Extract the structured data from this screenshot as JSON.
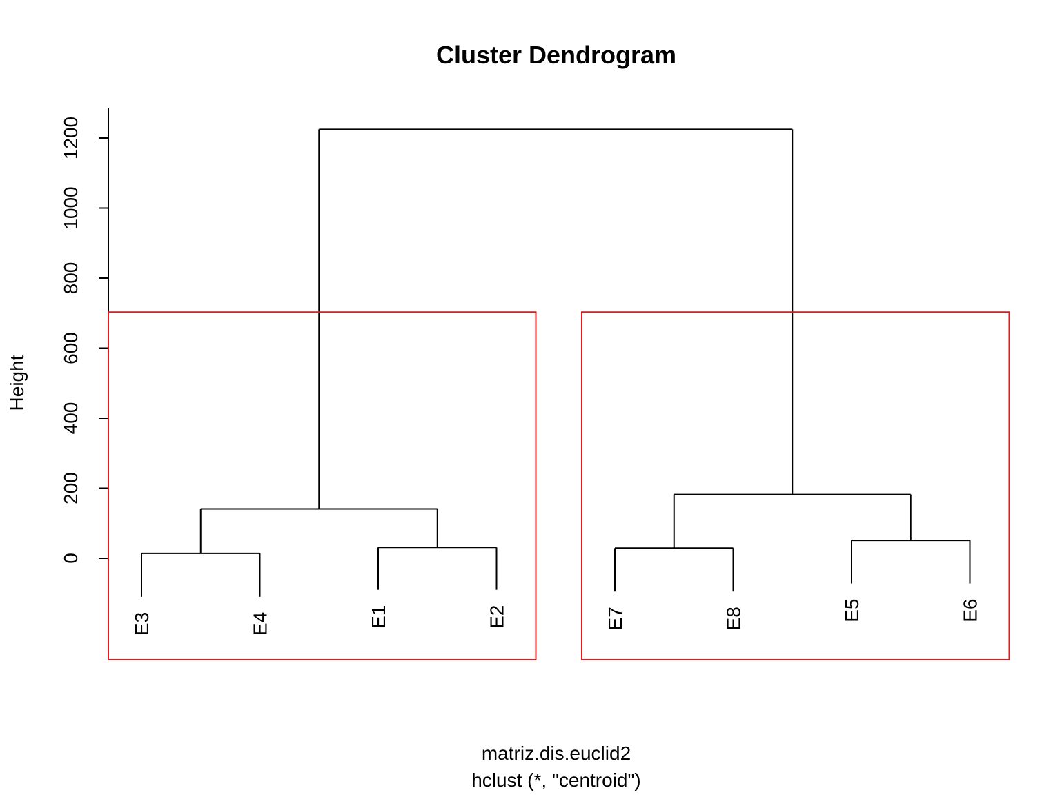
{
  "chart_data": {
    "type": "dendrogram",
    "title": "Cluster Dendrogram",
    "xlabel": "matriz.dis.euclid2",
    "sublabel": "hclust (*, \"centroid\")",
    "ylabel": "Height",
    "yticks": [
      0,
      200,
      400,
      600,
      800,
      1000,
      1200
    ],
    "yrange": [
      0,
      1200
    ],
    "leaves": [
      {
        "label": "E3",
        "base": -110
      },
      {
        "label": "E4",
        "base": -110
      },
      {
        "label": "E1",
        "base": -90
      },
      {
        "label": "E2",
        "base": -90
      },
      {
        "label": "E7",
        "base": -95
      },
      {
        "label": "E8",
        "base": -95
      },
      {
        "label": "E5",
        "base": -72
      },
      {
        "label": "E6",
        "base": -72
      }
    ],
    "merges": [
      {
        "left": "E3",
        "right": "E4",
        "height": 14,
        "id": "n1"
      },
      {
        "left": "E1",
        "right": "E2",
        "height": 31,
        "id": "n2"
      },
      {
        "left": "E7",
        "right": "E8",
        "height": 29,
        "id": "n3"
      },
      {
        "left": "E5",
        "right": "E6",
        "height": 51,
        "id": "n4"
      },
      {
        "left": "n1",
        "right": "n2",
        "height": 141,
        "id": "n5"
      },
      {
        "left": "n3",
        "right": "n4",
        "height": 182,
        "id": "n6"
      },
      {
        "left": "n5",
        "right": "n6",
        "height": 1225,
        "id": "n7"
      }
    ],
    "cluster_boxes": {
      "color": "#e31a1c",
      "k": 2,
      "cut_height": 703,
      "groups": [
        [
          "E3",
          "E4",
          "E1",
          "E2"
        ],
        [
          "E7",
          "E8",
          "E5",
          "E6"
        ]
      ]
    },
    "line_color": "#000000"
  }
}
